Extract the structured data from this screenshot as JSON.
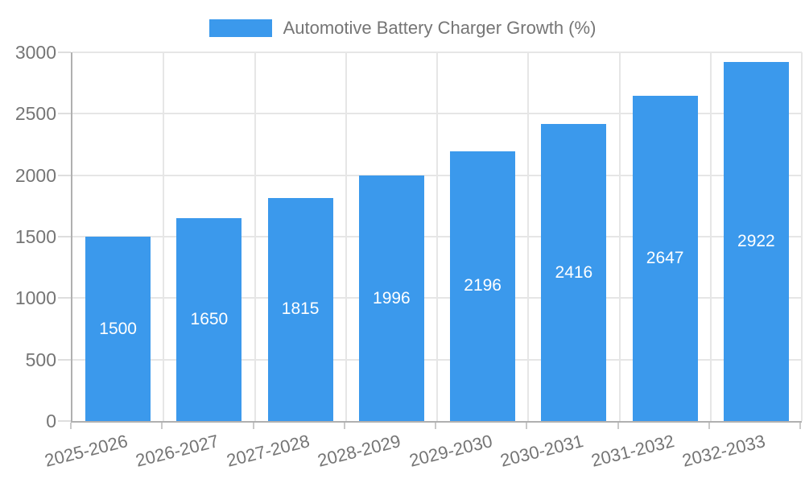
{
  "chart_data": {
    "type": "bar",
    "title": "Automotive Battery Charger Growth (%)",
    "legend": {
      "position": "top",
      "entries": [
        "Automotive Battery Charger Growth (%)"
      ]
    },
    "categories": [
      "2025-2026",
      "2026-2027",
      "2027-2028",
      "2028-2029",
      "2029-2030",
      "2030-2031",
      "2031-2032",
      "2032-2033"
    ],
    "series": [
      {
        "name": "Automotive Battery Charger Growth (%)",
        "values": [
          1500,
          1650,
          1815,
          1996,
          2196,
          2416,
          2647,
          2922
        ]
      }
    ],
    "data_labels": [
      "1500",
      "1650",
      "1815",
      "1996",
      "2196",
      "2416",
      "2647",
      "2922"
    ],
    "xlabel": "",
    "ylabel": "",
    "ylim": [
      0,
      3000
    ],
    "yticks": [
      0,
      500,
      1000,
      1500,
      2000,
      2500,
      3000
    ],
    "grid": true,
    "x_tick_rotation_deg": -14
  },
  "colors": {
    "bar": "#3B99EC",
    "bar_label": "#ffffff",
    "axis": "#b0b0b0",
    "gridline": "#e6e6e6",
    "text": "#757575",
    "background": "#ffffff"
  }
}
